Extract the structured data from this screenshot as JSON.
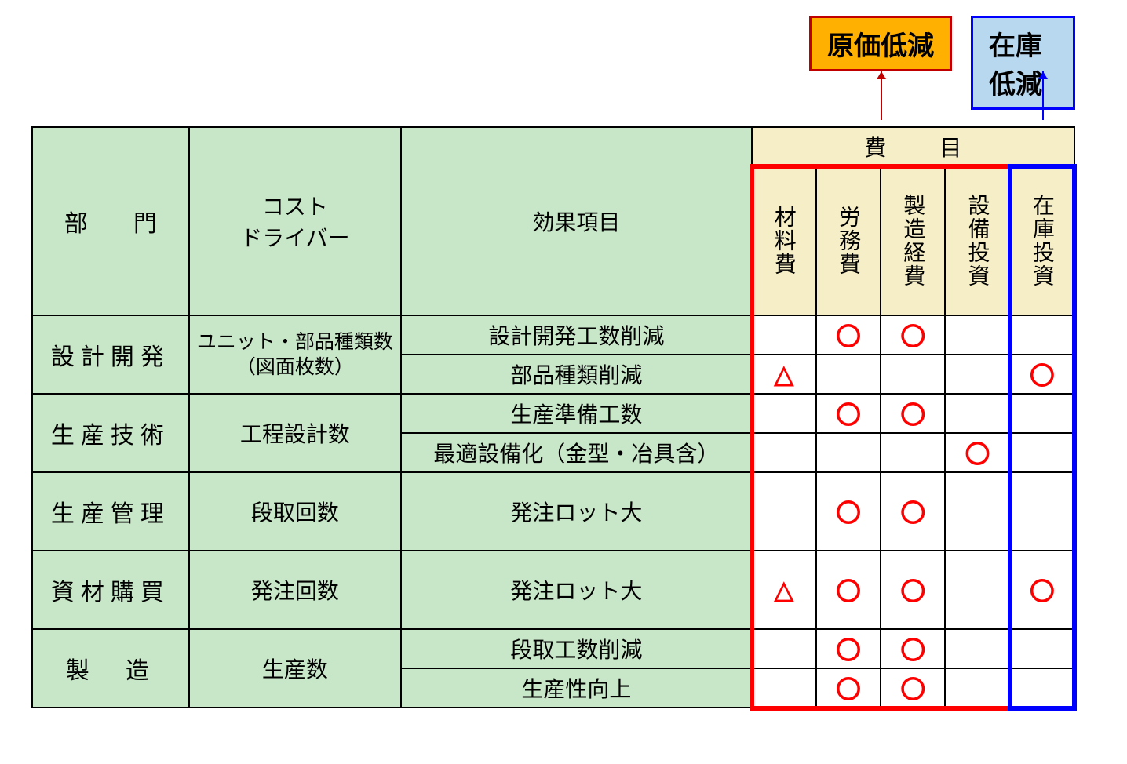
{
  "callouts": {
    "cost_reduction": {
      "text": "原価低減",
      "bg_color": "#ffb000",
      "border_color": "#c00000",
      "arrow_color": "#c00000"
    },
    "inventory_reduction": {
      "text": "在庫低減",
      "bg_color": "#b8d8f0",
      "border_color": "#0000ff",
      "arrow_color": "#0000ff"
    }
  },
  "table": {
    "type": "table",
    "header_bg": "#f5eec6",
    "body_label_bg": "#c8e6c8",
    "border_color": "#000000",
    "mark_color": "#ff0000",
    "font_size_header": 28,
    "font_size_body": 28,
    "columns": {
      "dept": "部　門",
      "driver": "コスト\nドライバー",
      "effect": "効果項目",
      "expense_group": "費　目",
      "expenses": [
        "材料費",
        "労務費",
        "製造経費",
        "設備投資",
        "在庫投資"
      ]
    },
    "rows": [
      {
        "dept": "設計開発",
        "driver": "ユニット・部品種類数\n（図面枚数）",
        "effects": [
          {
            "label": "設計開発工数削減",
            "marks": [
              "",
              "〇",
              "〇",
              "",
              ""
            ]
          },
          {
            "label": "部品種類削減",
            "marks": [
              "△",
              "",
              "",
              "",
              "〇"
            ]
          }
        ]
      },
      {
        "dept": "生産技術",
        "driver": "工程設計数",
        "effects": [
          {
            "label": "生産準備工数",
            "marks": [
              "",
              "〇",
              "〇",
              "",
              ""
            ]
          },
          {
            "label": "最適設備化（金型・冶具含）",
            "marks": [
              "",
              "",
              "",
              "〇",
              ""
            ]
          }
        ]
      },
      {
        "dept": "生産管理",
        "driver": "段取回数",
        "effects": [
          {
            "label": "発注ロット大",
            "marks": [
              "",
              "〇",
              "〇",
              "",
              ""
            ]
          }
        ]
      },
      {
        "dept": "資材購買",
        "driver": "発注回数",
        "effects": [
          {
            "label": "発注ロット大",
            "marks": [
              "△",
              "〇",
              "〇",
              "",
              "〇"
            ]
          }
        ]
      },
      {
        "dept": "製　造",
        "driver": "生産数",
        "effects": [
          {
            "label": "段取工数削減",
            "marks": [
              "",
              "〇",
              "〇",
              "",
              ""
            ]
          },
          {
            "label": "生産性向上",
            "marks": [
              "",
              "〇",
              "〇",
              "",
              ""
            ]
          }
        ]
      }
    ]
  },
  "overlays": {
    "red_box": {
      "color": "#ff0000",
      "border_width": 6,
      "covers_columns": [
        "材料費",
        "労務費",
        "製造経費",
        "設備投資"
      ]
    },
    "blue_box": {
      "color": "#0000ff",
      "border_width": 6,
      "covers_columns": [
        "在庫投資"
      ]
    }
  }
}
